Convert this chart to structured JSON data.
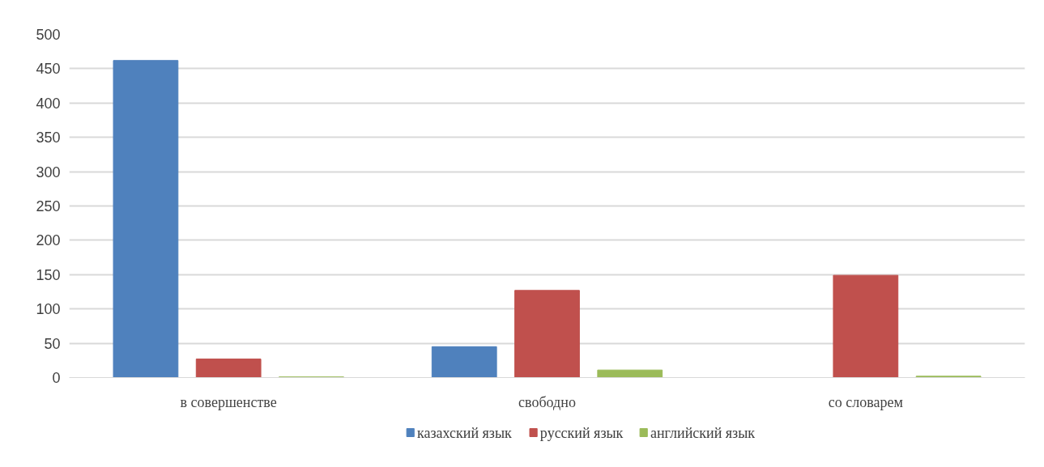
{
  "chart_data": {
    "type": "bar",
    "categories": [
      "в совершенстве",
      "свободно",
      "со словарем"
    ],
    "series": [
      {
        "name": "казахский язык",
        "color": "#4f81bd",
        "values": [
          462,
          45,
          0
        ]
      },
      {
        "name": "русский язык",
        "color": "#c0504d",
        "values": [
          27,
          127,
          149
        ]
      },
      {
        "name": "английский язык",
        "color": "#9bbb59",
        "values": [
          1,
          11,
          2
        ]
      }
    ],
    "ylim": [
      0,
      500
    ],
    "yticks": [
      0,
      50,
      100,
      150,
      200,
      250,
      300,
      350,
      400,
      450,
      500
    ],
    "grid": "y",
    "legend": "bottom"
  }
}
